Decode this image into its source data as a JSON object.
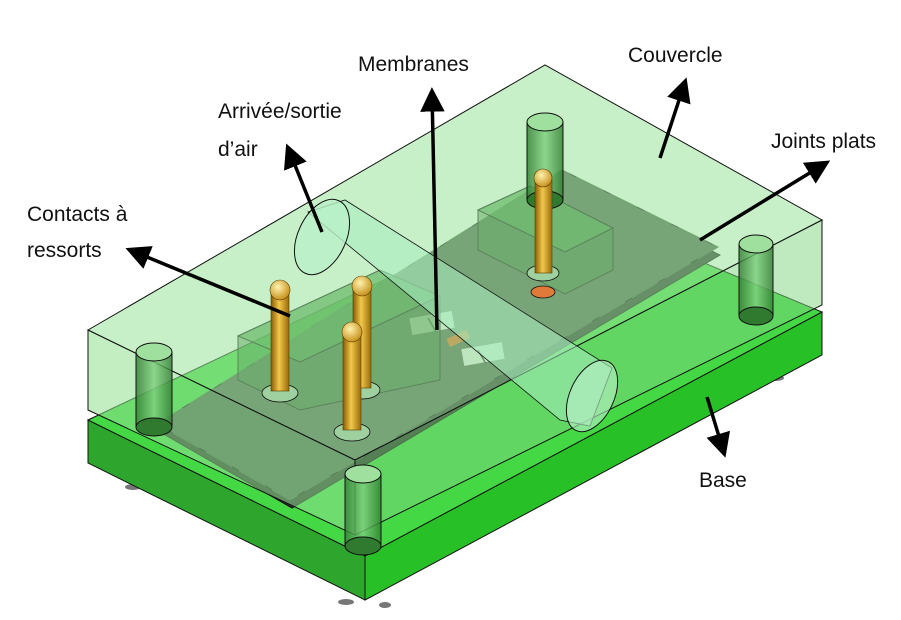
{
  "labels": {
    "membranes": "Membranes",
    "couvercle": "Couvercle",
    "arrivee_line1": "Arrivée/sortie",
    "arrivee_line2": "d’air",
    "joints": "Joints plats",
    "contacts_line1": "Contacts à",
    "contacts_line2": "ressorts",
    "base": "Base"
  },
  "colors": {
    "base_green": "#3fd43f",
    "lid_green": "#8fe08f",
    "pin_gold": "#d9a21b",
    "membrane_gray": "#3d4a3d"
  }
}
